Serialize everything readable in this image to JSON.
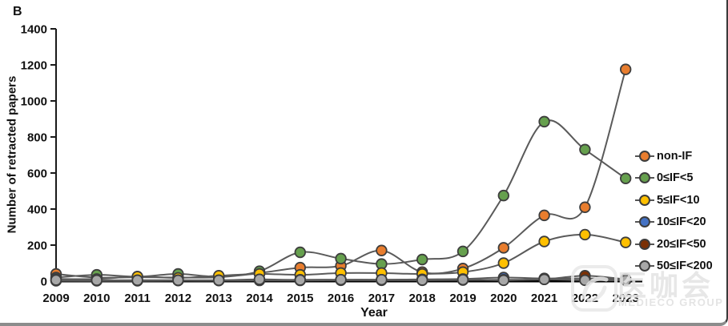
{
  "panel_label": "B",
  "watermark": {
    "title": "医咖会",
    "subtitle": "MEDIECO GROUP"
  },
  "chart_data": {
    "type": "line",
    "title": "",
    "xlabel": "Year",
    "ylabel": "Number of retracted papers",
    "x": [
      2009,
      2010,
      2011,
      2012,
      2013,
      2014,
      2015,
      2016,
      2017,
      2018,
      2019,
      2020,
      2021,
      2022,
      2023
    ],
    "ylim": [
      0,
      1400
    ],
    "yticks": [
      0,
      200,
      400,
      600,
      800,
      1000,
      1200,
      1400
    ],
    "grid": false,
    "legend_position": "right",
    "line_color": "#5a5a5a",
    "marker_outline_color": "#3d3d3d",
    "series": [
      {
        "name": "non-IF",
        "color": "#E87D2E",
        "values": [
          40,
          20,
          22,
          20,
          22,
          45,
          75,
          85,
          170,
          50,
          70,
          185,
          365,
          410,
          1175
        ]
      },
      {
        "name": "0≤IF<5",
        "color": "#66A04E",
        "values": [
          20,
          35,
          25,
          40,
          25,
          55,
          160,
          125,
          95,
          120,
          165,
          475,
          885,
          730,
          570
        ]
      },
      {
        "name": "5≤IF<10",
        "color": "#FFC000",
        "values": [
          12,
          12,
          25,
          18,
          30,
          40,
          35,
          45,
          45,
          40,
          50,
          100,
          220,
          258,
          215
        ]
      },
      {
        "name": "10≤IF<20",
        "color": "#4472C4",
        "values": [
          4,
          4,
          5,
          5,
          5,
          6,
          8,
          8,
          8,
          10,
          12,
          20,
          15,
          15,
          12
        ]
      },
      {
        "name": "20≤IF<50",
        "color": "#7B3005",
        "values": [
          2,
          2,
          2,
          3,
          3,
          4,
          4,
          5,
          5,
          5,
          6,
          8,
          10,
          30,
          10
        ]
      },
      {
        "name": "50≤IF<200",
        "color": "#A8A8A8",
        "values": [
          6,
          5,
          5,
          5,
          5,
          10,
          6,
          8,
          8,
          6,
          8,
          5,
          10,
          5,
          5
        ]
      }
    ]
  }
}
